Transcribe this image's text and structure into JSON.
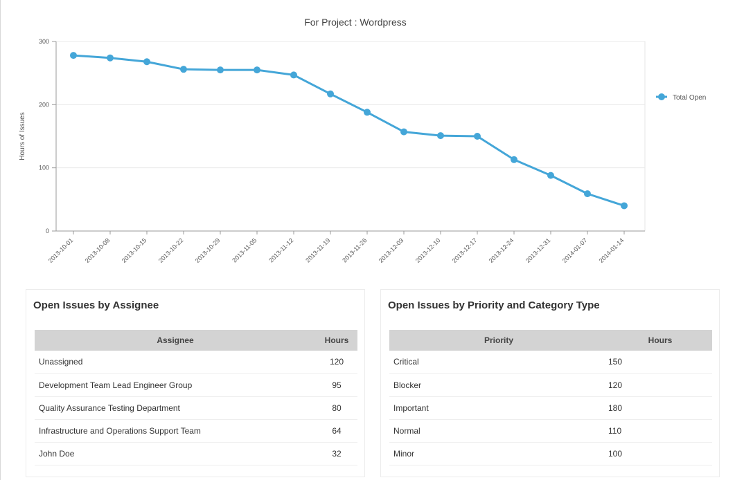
{
  "chart_data": {
    "type": "line",
    "title": "For Project : Wordpress",
    "ylabel": "Hours of Issues",
    "ylim": [
      0,
      300
    ],
    "yticks": [
      0,
      100,
      200,
      300
    ],
    "grid": true,
    "legend_position": "right",
    "categories": [
      "2013-10-01",
      "2013-10-08",
      "2013-10-15",
      "2013-10-22",
      "2013-10-29",
      "2013-11-05",
      "2013-11-12",
      "2013-11-19",
      "2013-11-26",
      "2013-12-03",
      "2013-12-10",
      "2013-12-17",
      "2013-12-24",
      "2013-12-31",
      "2014-01-07",
      "2014-01-14"
    ],
    "series": [
      {
        "name": "Total Open",
        "color": "#44a6d8",
        "values": [
          278,
          274,
          268,
          256,
          255,
          255,
          247,
          217,
          188,
          157,
          151,
          150,
          113,
          88,
          59,
          40
        ]
      }
    ]
  },
  "tables": [
    {
      "heading": "Open Issues by Assignee",
      "columns": [
        "Assignee",
        "Hours"
      ],
      "rows": [
        [
          "Unassigned",
          "120"
        ],
        [
          "Development Team Lead Engineer Group",
          "95"
        ],
        [
          "Quality Assurance Testing Department",
          "80"
        ],
        [
          "Infrastructure and Operations Support Team",
          "64"
        ],
        [
          "John Doe",
          "32"
        ]
      ]
    },
    {
      "heading": "Open Issues by Priority and Category Type",
      "columns": [
        "Priority",
        "Hours"
      ],
      "rows": [
        [
          "Critical",
          "150"
        ],
        [
          "Blocker",
          "120"
        ],
        [
          "Important",
          "180"
        ],
        [
          "Normal",
          "110"
        ],
        [
          "Minor",
          "100"
        ]
      ]
    }
  ]
}
